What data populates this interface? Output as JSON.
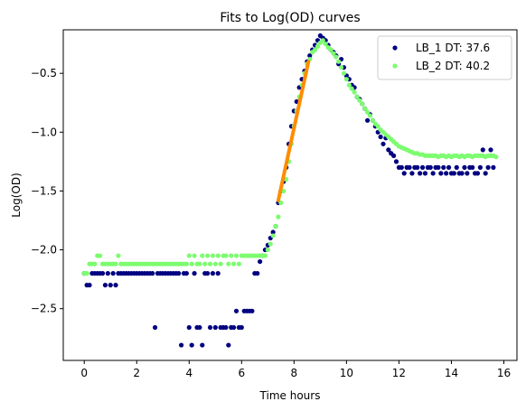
{
  "chart_data": {
    "type": "scatter",
    "title": "Fits to Log(OD) curves",
    "xlabel": "Time hours",
    "ylabel": "Log(OD)",
    "xlim": [
      -0.8,
      16.5
    ],
    "ylim": [
      -2.94,
      -0.13
    ],
    "xticks": [
      "0",
      "2",
      "4",
      "6",
      "8",
      "10",
      "12",
      "14",
      "16"
    ],
    "yticks": [
      "−2.5",
      "−2.0",
      "−1.5",
      "−1.0",
      "−0.5"
    ],
    "grid": false,
    "legend_position": "top-right",
    "series": [
      {
        "name": "LB_1 DT: 37.6",
        "color": "#000080",
        "x": [
          0.0,
          0.1,
          0.2,
          0.3,
          0.4,
          0.5,
          0.6,
          0.7,
          0.8,
          0.9,
          1.0,
          1.1,
          1.2,
          1.3,
          1.4,
          1.5,
          1.6,
          1.7,
          1.8,
          1.9,
          2.0,
          2.1,
          2.2,
          2.3,
          2.4,
          2.5,
          2.6,
          2.7,
          2.8,
          2.9,
          3.0,
          3.1,
          3.2,
          3.3,
          3.4,
          3.5,
          3.6,
          3.7,
          3.8,
          3.9,
          4.0,
          4.1,
          4.2,
          4.3,
          4.4,
          4.5,
          4.6,
          4.7,
          4.8,
          4.9,
          5.0,
          5.1,
          5.2,
          5.3,
          5.4,
          5.5,
          5.6,
          5.7,
          5.8,
          5.9,
          6.0,
          6.1,
          6.2,
          6.3,
          6.4,
          6.5,
          6.6,
          6.7,
          6.8,
          6.9,
          7.0,
          7.1,
          7.2,
          7.3,
          7.4,
          7.5,
          7.6,
          7.7,
          7.8,
          7.9,
          8.0,
          8.1,
          8.2,
          8.3,
          8.4,
          8.5,
          8.6,
          8.7,
          8.8,
          8.9,
          9.0,
          9.1,
          9.2,
          9.3,
          9.4,
          9.5,
          9.6,
          9.7,
          9.8,
          9.9,
          10.0,
          10.1,
          10.2,
          10.3,
          10.4,
          10.5,
          10.6,
          10.7,
          10.8,
          10.9,
          11.0,
          11.1,
          11.2,
          11.3,
          11.4,
          11.5,
          11.6,
          11.7,
          11.8,
          11.9,
          12.0,
          12.1,
          12.2,
          12.3,
          12.4,
          12.5,
          12.6,
          12.7,
          12.8,
          12.9,
          13.0,
          13.1,
          13.2,
          13.3,
          13.4,
          13.5,
          13.6,
          13.7,
          13.8,
          13.9,
          14.0,
          14.1,
          14.2,
          14.3,
          14.4,
          14.5,
          14.6,
          14.7,
          14.8,
          14.9,
          15.0,
          15.1,
          15.2,
          15.3,
          15.4,
          15.5,
          15.6
        ],
        "y": [
          -2.2,
          -2.3,
          -2.3,
          -2.2,
          -2.2,
          -2.2,
          -2.2,
          -2.2,
          -2.3,
          -2.2,
          -2.3,
          -2.2,
          -2.3,
          -2.2,
          -2.2,
          -2.2,
          -2.2,
          -2.2,
          -2.2,
          -2.2,
          -2.2,
          -2.2,
          -2.2,
          -2.2,
          -2.2,
          -2.2,
          -2.2,
          -2.66,
          -2.2,
          -2.2,
          -2.2,
          -2.2,
          -2.2,
          -2.2,
          -2.2,
          -2.2,
          -2.2,
          -2.81,
          -2.2,
          -2.2,
          -2.66,
          -2.81,
          -2.2,
          -2.66,
          -2.66,
          -2.81,
          -2.2,
          -2.2,
          -2.66,
          -2.2,
          -2.66,
          -2.2,
          -2.66,
          -2.66,
          -2.66,
          -2.81,
          -2.66,
          -2.66,
          -2.52,
          -2.66,
          -2.66,
          -2.52,
          -2.52,
          -2.52,
          -2.52,
          -2.2,
          -2.2,
          -2.1,
          -2.05,
          -2.0,
          -1.96,
          -1.9,
          -1.85,
          -1.8,
          -1.6,
          -1.5,
          -1.42,
          -1.3,
          -1.1,
          -0.95,
          -0.82,
          -0.74,
          -0.62,
          -0.55,
          -0.48,
          -0.4,
          -0.35,
          -0.3,
          -0.26,
          -0.22,
          -0.18,
          -0.2,
          -0.22,
          -0.26,
          -0.3,
          -0.32,
          -0.35,
          -0.42,
          -0.38,
          -0.45,
          -0.52,
          -0.55,
          -0.6,
          -0.62,
          -0.7,
          -0.72,
          -0.76,
          -0.8,
          -0.9,
          -0.85,
          -0.9,
          -0.95,
          -1.0,
          -1.04,
          -1.1,
          -1.05,
          -1.15,
          -1.18,
          -1.2,
          -1.25,
          -1.3,
          -1.3,
          -1.35,
          -1.3,
          -1.3,
          -1.35,
          -1.3,
          -1.3,
          -1.35,
          -1.3,
          -1.35,
          -1.3,
          -1.3,
          -1.35,
          -1.3,
          -1.3,
          -1.35,
          -1.3,
          -1.35,
          -1.3,
          -1.35,
          -1.35,
          -1.3,
          -1.35,
          -1.35,
          -1.3,
          -1.35,
          -1.3,
          -1.3,
          -1.35,
          -1.35,
          -1.3,
          -1.15,
          -1.35,
          -1.3,
          -1.15,
          -1.3
        ]
      },
      {
        "name": "LB_2 DT: 40.2",
        "color": "#7cfc6f",
        "x": [
          0.0,
          0.1,
          0.2,
          0.3,
          0.4,
          0.5,
          0.6,
          0.7,
          0.8,
          0.9,
          1.0,
          1.1,
          1.2,
          1.3,
          1.4,
          1.5,
          1.6,
          1.7,
          1.8,
          1.9,
          2.0,
          2.1,
          2.2,
          2.3,
          2.4,
          2.5,
          2.6,
          2.7,
          2.8,
          2.9,
          3.0,
          3.1,
          3.2,
          3.3,
          3.4,
          3.5,
          3.6,
          3.7,
          3.8,
          3.9,
          4.0,
          4.1,
          4.2,
          4.3,
          4.4,
          4.5,
          4.6,
          4.7,
          4.8,
          4.9,
          5.0,
          5.1,
          5.2,
          5.3,
          5.4,
          5.5,
          5.6,
          5.7,
          5.8,
          5.9,
          6.0,
          6.1,
          6.2,
          6.3,
          6.4,
          6.5,
          6.6,
          6.7,
          6.8,
          6.9,
          7.0,
          7.1,
          7.2,
          7.3,
          7.4,
          7.5,
          7.6,
          7.7,
          7.8,
          7.9,
          8.0,
          8.1,
          8.2,
          8.3,
          8.4,
          8.5,
          8.6,
          8.7,
          8.8,
          8.9,
          9.0,
          9.1,
          9.2,
          9.3,
          9.4,
          9.5,
          9.6,
          9.7,
          9.8,
          9.9,
          10.0,
          10.1,
          10.2,
          10.3,
          10.4,
          10.5,
          10.6,
          10.7,
          10.8,
          10.9,
          11.0,
          11.1,
          11.2,
          11.3,
          11.4,
          11.5,
          11.6,
          11.7,
          11.8,
          11.9,
          12.0,
          12.1,
          12.2,
          12.3,
          12.4,
          12.5,
          12.6,
          12.7,
          12.8,
          12.9,
          13.0,
          13.1,
          13.2,
          13.3,
          13.4,
          13.5,
          13.6,
          13.7,
          13.8,
          13.9,
          14.0,
          14.1,
          14.2,
          14.3,
          14.4,
          14.5,
          14.6,
          14.7,
          14.8,
          14.9,
          15.0,
          15.1,
          15.2,
          15.3,
          15.4,
          15.5,
          15.6,
          15.7
        ],
        "y": [
          -2.2,
          -2.2,
          -2.12,
          -2.12,
          -2.12,
          -2.05,
          -2.05,
          -2.12,
          -2.12,
          -2.12,
          -2.12,
          -2.12,
          -2.12,
          -2.05,
          -2.12,
          -2.12,
          -2.12,
          -2.12,
          -2.12,
          -2.12,
          -2.12,
          -2.12,
          -2.12,
          -2.12,
          -2.12,
          -2.12,
          -2.12,
          -2.12,
          -2.12,
          -2.12,
          -2.12,
          -2.12,
          -2.12,
          -2.12,
          -2.12,
          -2.12,
          -2.12,
          -2.12,
          -2.12,
          -2.12,
          -2.05,
          -2.12,
          -2.05,
          -2.12,
          -2.12,
          -2.05,
          -2.12,
          -2.05,
          -2.12,
          -2.05,
          -2.12,
          -2.05,
          -2.12,
          -2.05,
          -2.05,
          -2.12,
          -2.05,
          -2.12,
          -2.05,
          -2.12,
          -2.05,
          -2.05,
          -2.05,
          -2.05,
          -2.05,
          -2.05,
          -2.05,
          -2.05,
          -2.05,
          -2.05,
          -2.0,
          -1.95,
          -1.88,
          -1.8,
          -1.72,
          -1.6,
          -1.5,
          -1.4,
          -1.25,
          -1.1,
          -0.95,
          -0.82,
          -0.7,
          -0.6,
          -0.5,
          -0.42,
          -0.38,
          -0.32,
          -0.3,
          -0.27,
          -0.24,
          -0.22,
          -0.25,
          -0.28,
          -0.3,
          -0.33,
          -0.36,
          -0.4,
          -0.45,
          -0.5,
          -0.55,
          -0.6,
          -0.63,
          -0.66,
          -0.7,
          -0.73,
          -0.76,
          -0.8,
          -0.83,
          -0.86,
          -0.9,
          -0.93,
          -0.95,
          -0.98,
          -1.0,
          -1.02,
          -1.04,
          -1.06,
          -1.08,
          -1.1,
          -1.12,
          -1.13,
          -1.14,
          -1.15,
          -1.16,
          -1.17,
          -1.18,
          -1.18,
          -1.19,
          -1.19,
          -1.2,
          -1.2,
          -1.2,
          -1.2,
          -1.2,
          -1.21,
          -1.2,
          -1.2,
          -1.21,
          -1.2,
          -1.21,
          -1.2,
          -1.2,
          -1.21,
          -1.2,
          -1.21,
          -1.2,
          -1.2,
          -1.21,
          -1.2,
          -1.2,
          -1.2,
          -1.2,
          -1.21,
          -1.2,
          -1.2,
          -1.2,
          -1.21
        ]
      }
    ],
    "fit_line": {
      "color": "#ff8c00",
      "x": [
        7.4,
        8.55
      ],
      "y": [
        -1.58,
        -0.4
      ]
    }
  }
}
